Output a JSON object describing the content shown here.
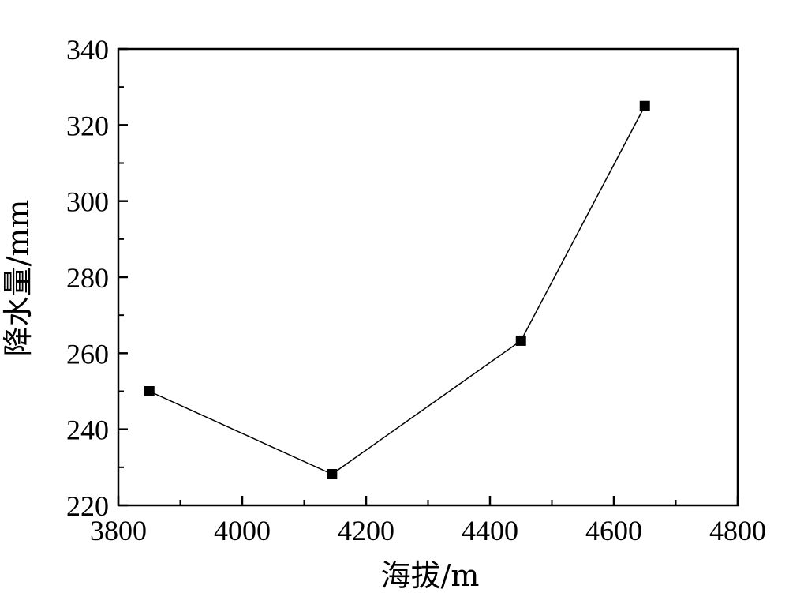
{
  "chart_data": {
    "type": "line",
    "xlabel": "海拔/m",
    "ylabel": "降水量/mm",
    "xlim": [
      3800,
      4800
    ],
    "ylim": [
      220,
      340
    ],
    "x_ticks": [
      3800,
      4000,
      4200,
      4400,
      4600,
      4800
    ],
    "y_ticks": [
      220,
      240,
      260,
      280,
      300,
      320,
      340
    ],
    "x_tick_labels": [
      "3800",
      "4000",
      "4200",
      "4400",
      "4600",
      "4800"
    ],
    "y_tick_labels": [
      "220",
      "240",
      "260",
      "280",
      "300",
      "320",
      "340"
    ],
    "grid": false,
    "marker": "square",
    "series": [
      {
        "x": [
          3850,
          4145,
          4450,
          4650
        ],
        "y": [
          250,
          228.2,
          263.3,
          325
        ]
      }
    ]
  }
}
